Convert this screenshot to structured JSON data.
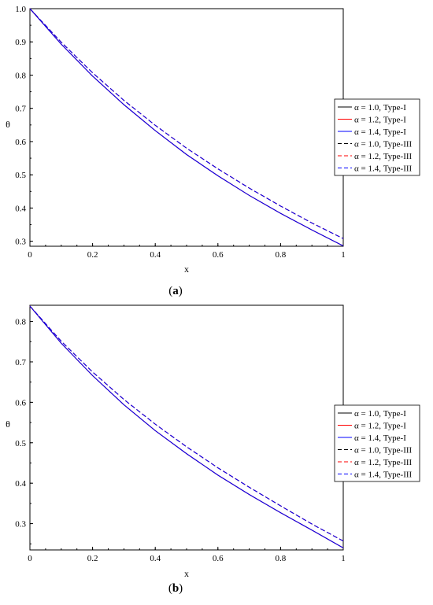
{
  "chart_data": [
    {
      "type": "line",
      "caption_open": "(",
      "caption_letter": "a",
      "caption_close": ")",
      "xlabel": "x",
      "ylabel": "θ",
      "xlim": [
        0,
        1
      ],
      "ylim": [
        0.285,
        1.0
      ],
      "xticks": [
        "0",
        "0.2",
        "0.4",
        "0.6",
        "0.8",
        "1"
      ],
      "yticks": [
        "0.3",
        "0.4",
        "0.5",
        "0.6",
        "0.7",
        "0.8",
        "0.9",
        "1.0"
      ],
      "x": [
        0,
        0.1,
        0.2,
        0.3,
        0.4,
        0.5,
        0.6,
        0.7,
        0.8,
        0.9,
        1.0
      ],
      "series": [
        {
          "name": "α = 1.0, Type-I",
          "color": "#000000",
          "dash": "solid",
          "values": [
            1.0,
            0.893,
            0.797,
            0.711,
            0.633,
            0.561,
            0.497,
            0.438,
            0.384,
            0.334,
            0.286
          ]
        },
        {
          "name": "α = 1.2, Type-I",
          "color": "#ff0000",
          "dash": "solid",
          "values": [
            1.0,
            0.893,
            0.797,
            0.711,
            0.633,
            0.561,
            0.497,
            0.438,
            0.384,
            0.334,
            0.286
          ]
        },
        {
          "name": "α = 1.4, Type-I",
          "color": "#0000ff",
          "dash": "solid",
          "values": [
            1.0,
            0.893,
            0.797,
            0.711,
            0.633,
            0.561,
            0.497,
            0.438,
            0.384,
            0.334,
            0.286
          ]
        },
        {
          "name": "α = 1.0, Type-III",
          "color": "#000000",
          "dash": "dashed",
          "values": [
            1.0,
            0.899,
            0.807,
            0.724,
            0.649,
            0.58,
            0.518,
            0.46,
            0.406,
            0.355,
            0.308
          ]
        },
        {
          "name": "α = 1.2, Type-III",
          "color": "#ff0000",
          "dash": "dashed",
          "values": [
            1.0,
            0.899,
            0.807,
            0.724,
            0.649,
            0.58,
            0.518,
            0.46,
            0.406,
            0.355,
            0.308
          ]
        },
        {
          "name": "α = 1.4, Type-III",
          "color": "#0000ff",
          "dash": "dashed",
          "values": [
            1.0,
            0.899,
            0.807,
            0.724,
            0.649,
            0.58,
            0.518,
            0.46,
            0.406,
            0.355,
            0.308
          ]
        }
      ]
    },
    {
      "type": "line",
      "caption_open": "(",
      "caption_letter": "b",
      "caption_close": ")",
      "xlabel": "x",
      "ylabel": "θ",
      "xlim": [
        0,
        1
      ],
      "ylim": [
        0.235,
        0.84
      ],
      "xticks": [
        "0",
        "0.2",
        "0.4",
        "0.6",
        "0.8",
        "1"
      ],
      "yticks": [
        "0.3",
        "0.4",
        "0.5",
        "0.6",
        "0.7",
        "0.8"
      ],
      "x": [
        0,
        0.1,
        0.2,
        0.3,
        0.4,
        0.5,
        0.6,
        0.7,
        0.8,
        0.9,
        1.0
      ],
      "series": [
        {
          "name": "α = 1.0, Type-I",
          "color": "#000000",
          "dash": "solid",
          "values": [
            0.838,
            0.746,
            0.666,
            0.594,
            0.53,
            0.473,
            0.42,
            0.372,
            0.327,
            0.284,
            0.24
          ]
        },
        {
          "name": "α = 1.2, Type-I",
          "color": "#ff0000",
          "dash": "solid",
          "values": [
            0.838,
            0.746,
            0.666,
            0.594,
            0.53,
            0.473,
            0.42,
            0.372,
            0.327,
            0.284,
            0.24
          ]
        },
        {
          "name": "α = 1.4, Type-I",
          "color": "#0000ff",
          "dash": "solid",
          "values": [
            0.838,
            0.746,
            0.666,
            0.594,
            0.53,
            0.473,
            0.42,
            0.372,
            0.327,
            0.284,
            0.24
          ]
        },
        {
          "name": "α = 1.0, Type-III",
          "color": "#000000",
          "dash": "dashed",
          "values": [
            0.838,
            0.751,
            0.675,
            0.607,
            0.546,
            0.49,
            0.438,
            0.39,
            0.344,
            0.299,
            0.257
          ]
        },
        {
          "name": "α = 1.2, Type-III",
          "color": "#ff0000",
          "dash": "dashed",
          "values": [
            0.838,
            0.751,
            0.675,
            0.607,
            0.546,
            0.49,
            0.438,
            0.39,
            0.344,
            0.299,
            0.257
          ]
        },
        {
          "name": "α = 1.4, Type-III",
          "color": "#0000ff",
          "dash": "dashed",
          "values": [
            0.838,
            0.751,
            0.675,
            0.607,
            0.546,
            0.49,
            0.438,
            0.39,
            0.344,
            0.299,
            0.257
          ]
        }
      ]
    }
  ]
}
